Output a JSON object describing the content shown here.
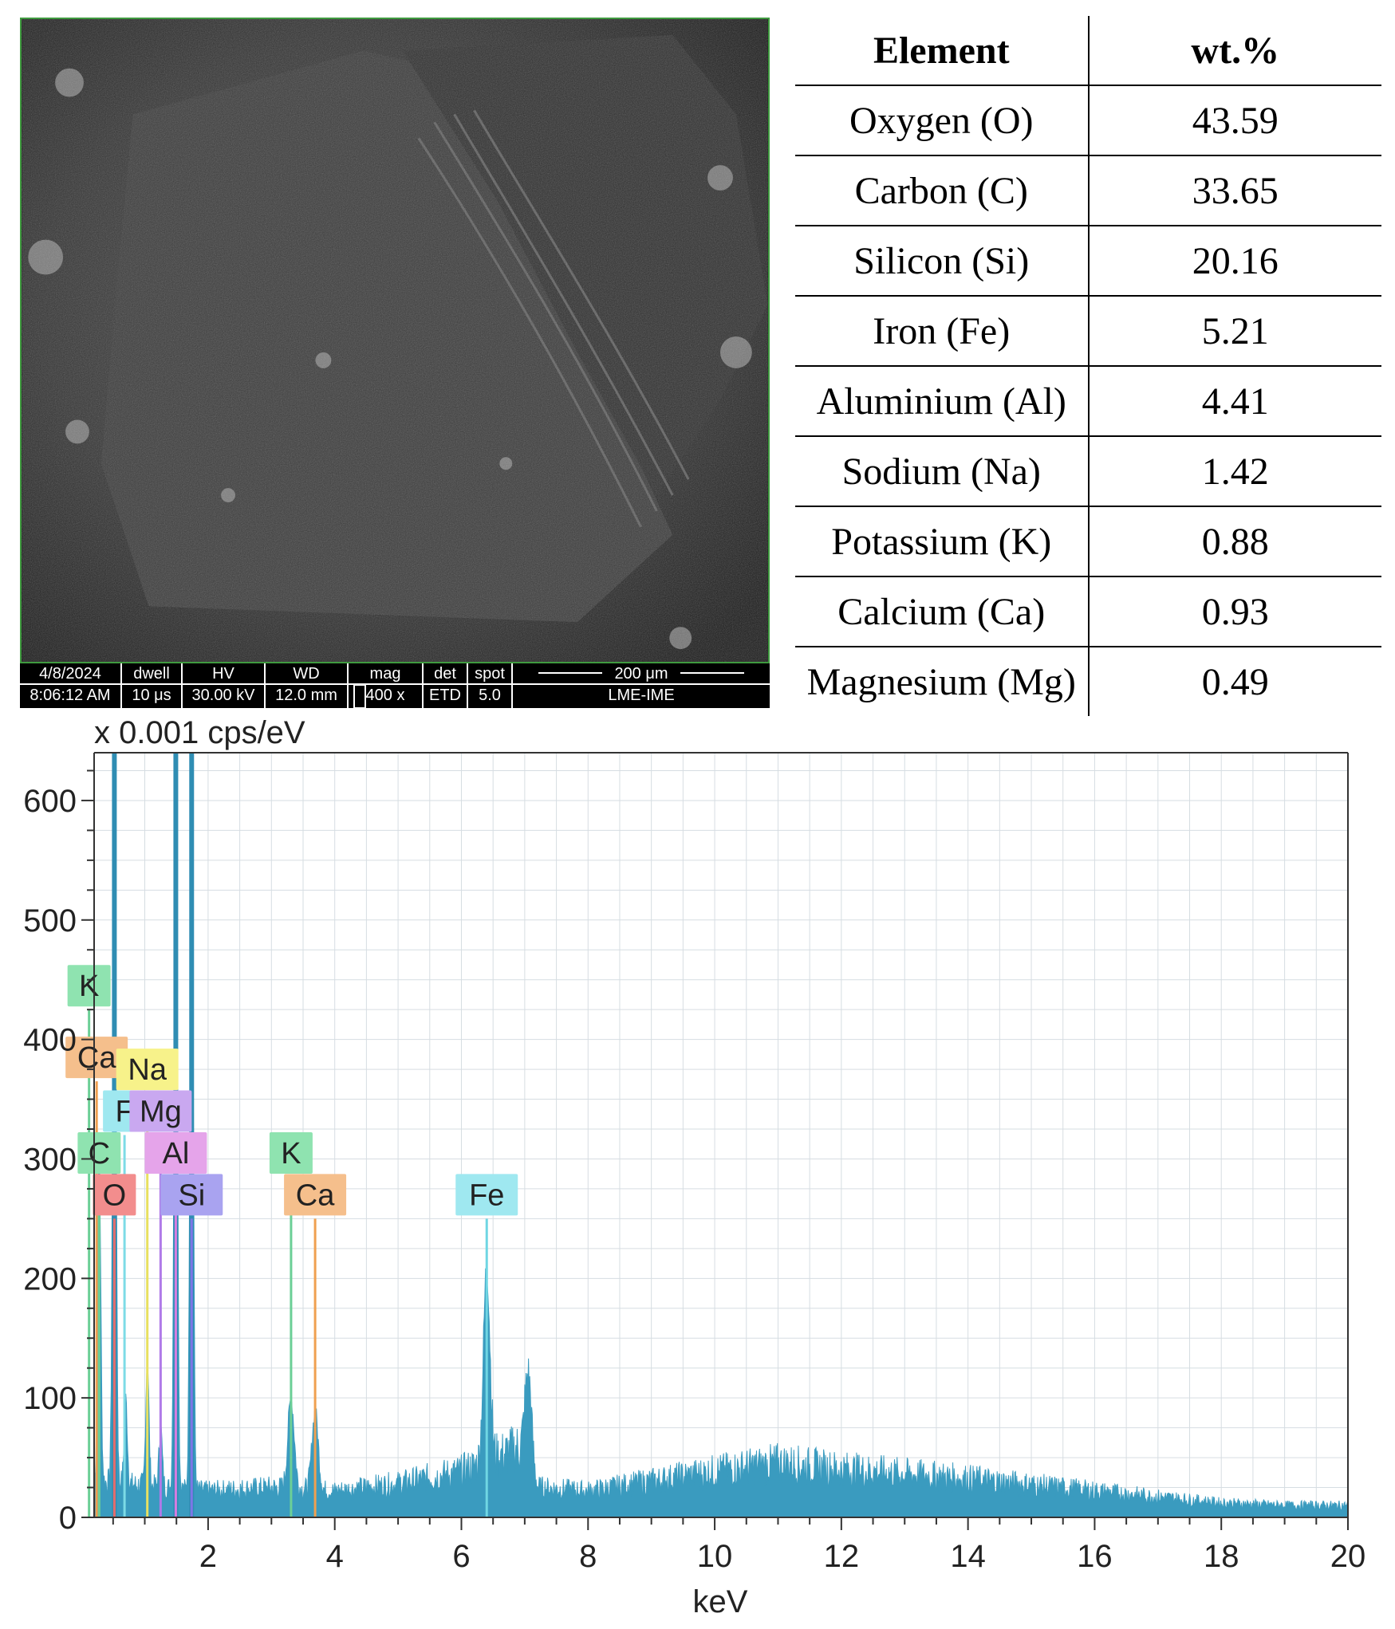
{
  "sem_info": {
    "date": "4/8/2024",
    "time": "8:06:12 AM",
    "dwell_label": "dwell",
    "dwell_value": "10 μs",
    "hv_label": "HV",
    "hv_value": "30.00 kV",
    "wd_label": "WD",
    "wd_value": "12.0 mm",
    "mag_label": "mag",
    "mag_value": "400 x",
    "det_label": "det",
    "det_value": "ETD",
    "spot_label": "spot",
    "spot_value": "5.0",
    "scale_label": "200 μm",
    "lab_label": "LME-IME"
  },
  "table": {
    "headers": [
      "Element",
      "wt.%"
    ],
    "rows": [
      {
        "element": "Oxygen (O)",
        "wt": "43.59"
      },
      {
        "element": "Carbon (C)",
        "wt": "33.65"
      },
      {
        "element": "Silicon (Si)",
        "wt": "20.16"
      },
      {
        "element": "Iron (Fe)",
        "wt": "5.21"
      },
      {
        "element": "Aluminium (Al)",
        "wt": "4.41"
      },
      {
        "element": "Sodium (Na)",
        "wt": "1.42"
      },
      {
        "element": "Potassium (K)",
        "wt": "0.88"
      },
      {
        "element": "Calcium (Ca)",
        "wt": "0.93"
      },
      {
        "element": "Magnesium (Mg)",
        "wt": "0.49"
      }
    ]
  },
  "chart_data": {
    "type": "area",
    "title": "",
    "ylabel": "x 0.001 cps/eV",
    "xlabel": "keV",
    "xlim": [
      0.2,
      20.0
    ],
    "ylim": [
      0,
      640
    ],
    "x_ticks": [
      2,
      4,
      6,
      8,
      10,
      12,
      14,
      16,
      18,
      20
    ],
    "y_ticks": [
      0,
      100,
      200,
      300,
      400,
      500,
      600
    ],
    "grid": true,
    "fill_color": "#3a9bbf",
    "baseline_keV": [
      0.2,
      2,
      3,
      4,
      5,
      6,
      7,
      7.2,
      8,
      10,
      11,
      12,
      14,
      16,
      18,
      19,
      20
    ],
    "baseline_counts": [
      30,
      22,
      25,
      22,
      28,
      38,
      60,
      25,
      22,
      38,
      45,
      40,
      32,
      22,
      12,
      10,
      10
    ],
    "peaks": [
      {
        "element": "C",
        "energy_keV": 0.28,
        "height": 280,
        "color": "#f3b400"
      },
      {
        "element": "O",
        "energy_keV": 0.52,
        "height": 640,
        "color": "#2d8fb5"
      },
      {
        "element": "Fe-L",
        "energy_keV": 0.7,
        "height": 70,
        "color": "#2d8fb5"
      },
      {
        "element": "Na",
        "energy_keV": 1.04,
        "height": 105,
        "color": "#2d8fb5"
      },
      {
        "element": "Mg",
        "energy_keV": 1.25,
        "height": 50,
        "color": "#2d8fb5"
      },
      {
        "element": "Al",
        "energy_keV": 1.49,
        "height": 640,
        "color": "#2d8fb5"
      },
      {
        "element": "Si",
        "energy_keV": 1.74,
        "height": 640,
        "color": "#2d8fb5"
      },
      {
        "element": "K",
        "energy_keV": 3.31,
        "height": 75,
        "color": "#2d8fb5"
      },
      {
        "element": "Ca",
        "energy_keV": 3.69,
        "height": 65,
        "color": "#2d8fb5"
      },
      {
        "element": "Fe",
        "energy_keV": 6.4,
        "height": 165,
        "color": "#2d8fb5"
      },
      {
        "element": "Fe-Kb",
        "energy_keV": 7.06,
        "height": 70,
        "color": "#2d8fb5"
      }
    ],
    "markers": [
      {
        "label": "K",
        "energy_keV": 0.12,
        "label_y": 445,
        "color": "#8fe3b0",
        "line_color": "#6ccf96"
      },
      {
        "label": "Ca",
        "energy_keV": 0.24,
        "label_y": 385,
        "color": "#f5bf8c",
        "line_color": "#f0a050"
      },
      {
        "label": "Na",
        "energy_keV": 1.04,
        "label_y": 375,
        "color": "#f7f28a",
        "line_color": "#e8e060"
      },
      {
        "label": "F",
        "energy_keV": 0.68,
        "label_y": 340,
        "color": "#9fe8f0",
        "line_color": "#7ddbe6"
      },
      {
        "label": "Mg",
        "energy_keV": 1.25,
        "label_y": 340,
        "color": "#c9a8f0",
        "line_color": "#b07ae8"
      },
      {
        "label": "C",
        "energy_keV": 0.28,
        "label_y": 305,
        "color": "#8fe3b0",
        "line_color": "#6ccf96"
      },
      {
        "label": "Al",
        "energy_keV": 1.49,
        "label_y": 305,
        "color": "#e5a4ea",
        "line_color": "#d77de0"
      },
      {
        "label": "O",
        "energy_keV": 0.52,
        "label_y": 270,
        "color": "#f28d8d",
        "line_color": "#e56c6c"
      },
      {
        "label": "Si",
        "energy_keV": 1.74,
        "label_y": 270,
        "color": "#a9a3f0",
        "line_color": "#7e76e6"
      },
      {
        "label": "K",
        "energy_keV": 3.31,
        "label_y": 305,
        "color": "#8fe3b0",
        "line_color": "#6ccf96"
      },
      {
        "label": "Ca",
        "energy_keV": 3.69,
        "label_y": 270,
        "color": "#f5bf8c",
        "line_color": "#f0a050"
      },
      {
        "label": "Fe",
        "energy_keV": 6.4,
        "label_y": 270,
        "color": "#9fe8f0",
        "line_color": "#6fd6e3"
      }
    ]
  }
}
